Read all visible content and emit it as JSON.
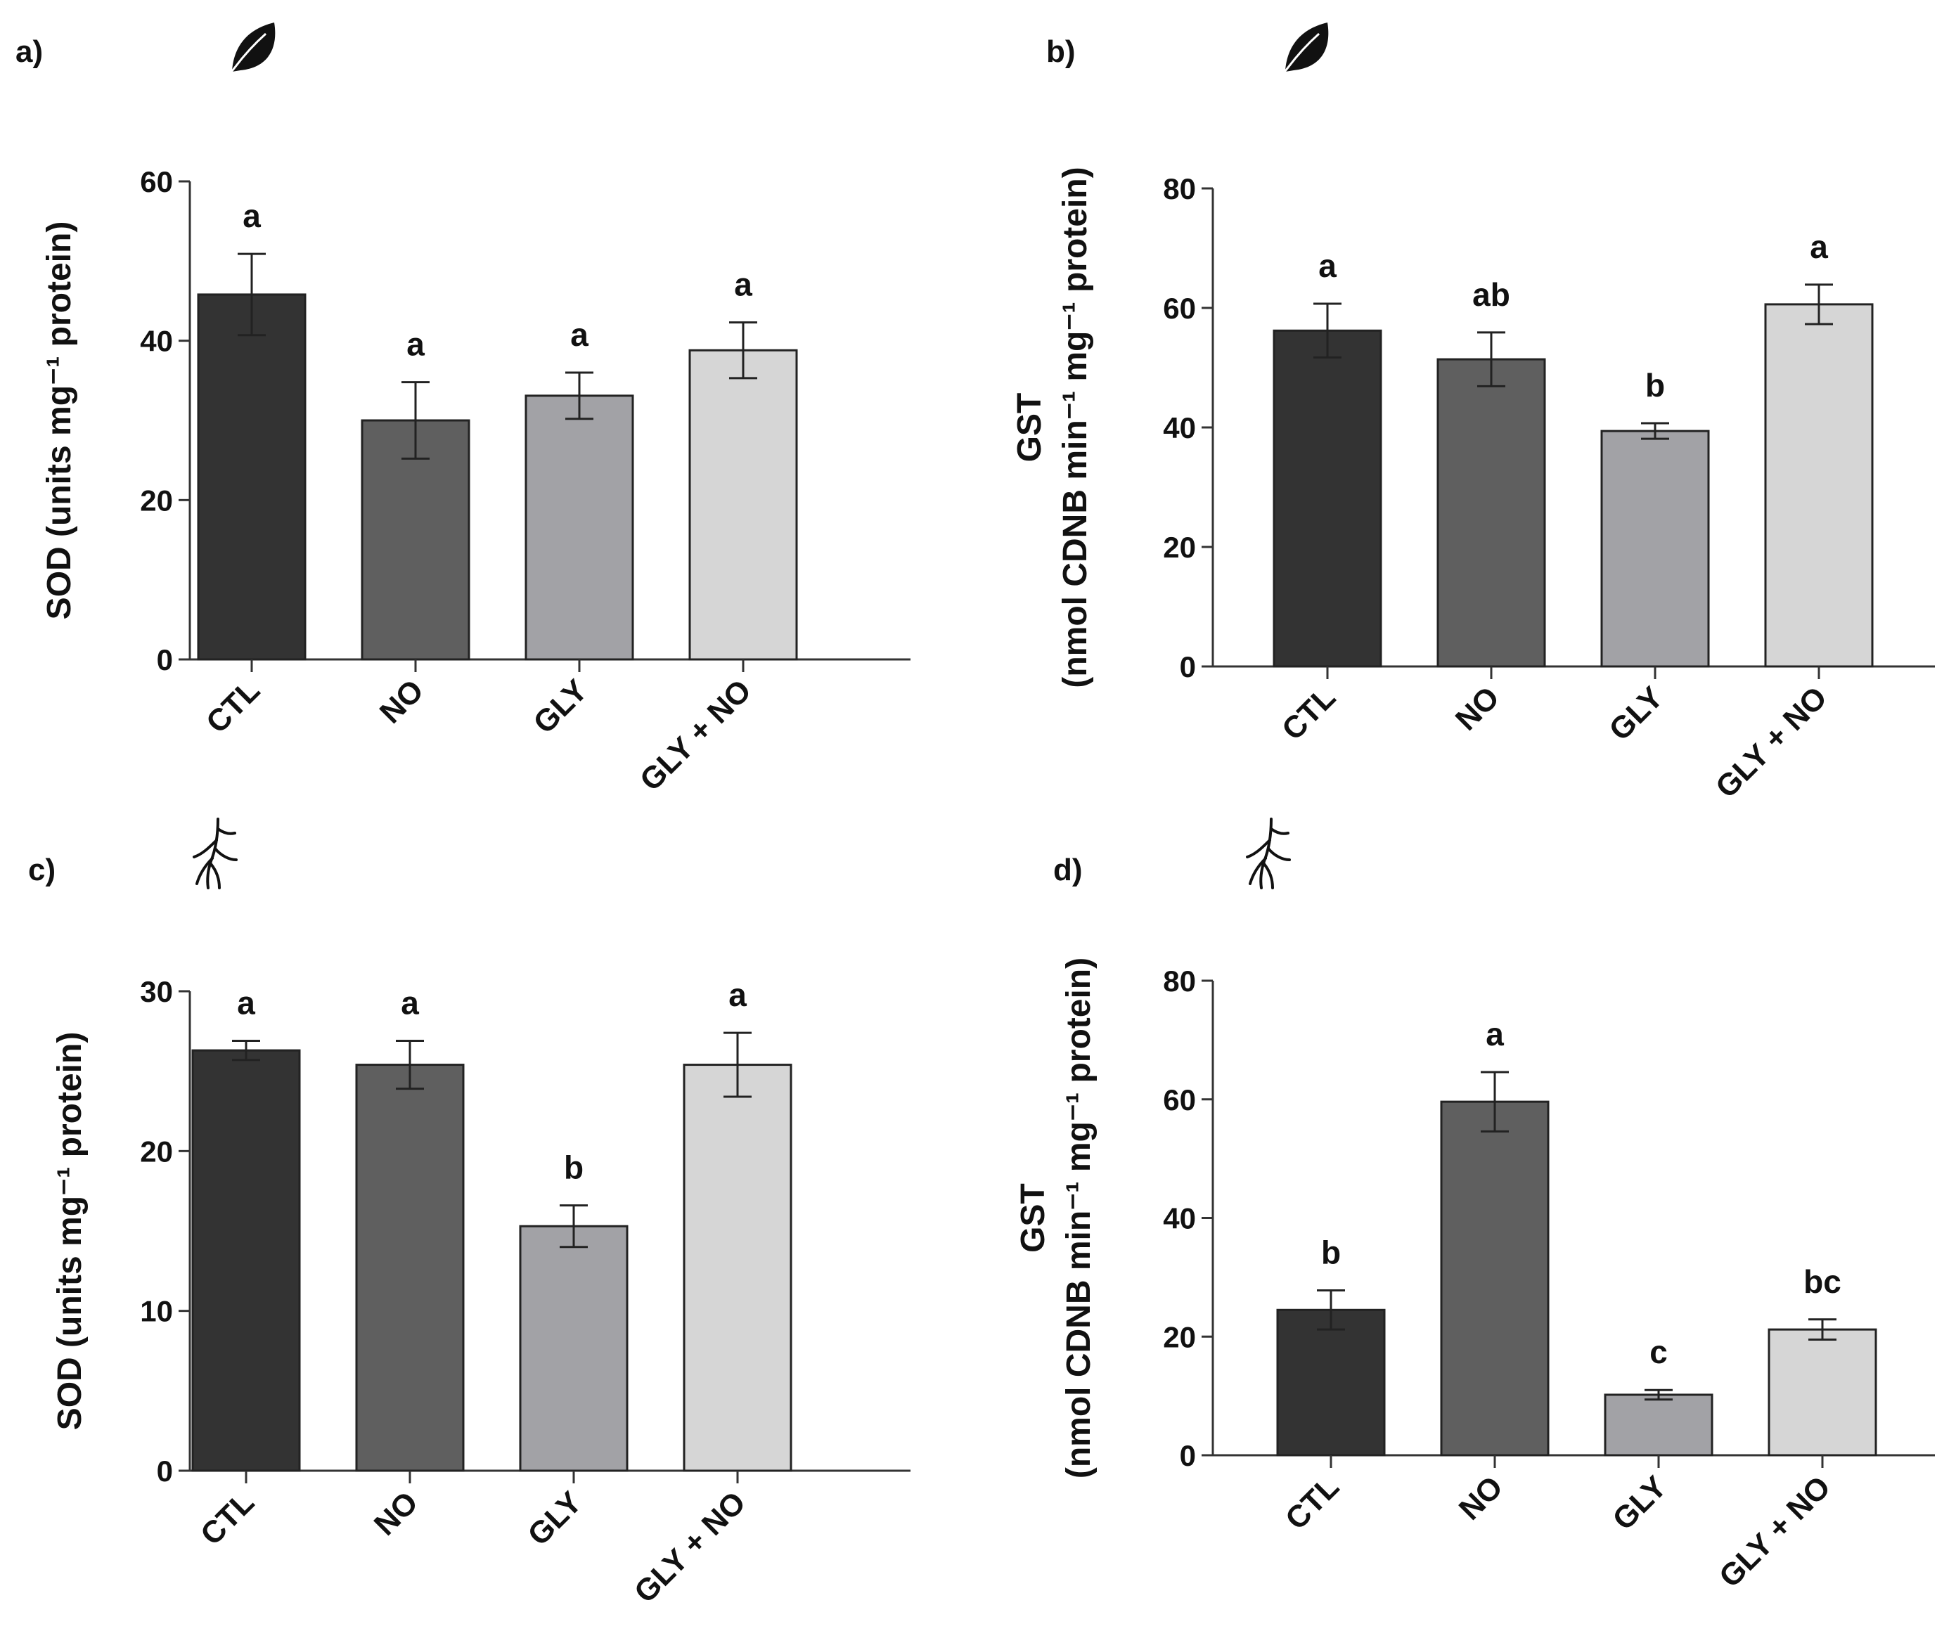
{
  "chart_data": [
    {
      "type": "bar",
      "panel_label": "a)",
      "tissue_icon": "leaf-icon",
      "categories": [
        "CTL",
        "NO",
        "GLY",
        "GLY + NO"
      ],
      "values": [
        45.8,
        30.0,
        33.1,
        38.8
      ],
      "errors": [
        5.1,
        4.8,
        2.9,
        3.5
      ],
      "significance": [
        "a",
        "a",
        "a",
        "a"
      ],
      "ylabel_lines": [
        "SOD (units mg⁻¹ protein)"
      ],
      "ylim": [
        0,
        60
      ],
      "yticks": [
        0,
        20,
        40,
        60
      ],
      "colors": [
        "#333333",
        "#5f5f5f",
        "#a2a2a6",
        "#d6d6d6"
      ]
    },
    {
      "type": "bar",
      "panel_label": "b)",
      "tissue_icon": "leaf-icon",
      "categories": [
        "CTL",
        "NO",
        "GLY",
        "GLY + NO"
      ],
      "values": [
        56.2,
        51.4,
        39.4,
        60.6
      ],
      "errors": [
        4.5,
        4.5,
        1.3,
        3.3
      ],
      "significance": [
        "a",
        "ab",
        "b",
        "a"
      ],
      "ylabel_lines": [
        "GST",
        "(nmol CDNB min⁻¹ mg⁻¹ protein)"
      ],
      "ylim": [
        0,
        80
      ],
      "yticks": [
        0,
        20,
        40,
        60,
        80
      ],
      "colors": [
        "#333333",
        "#5f5f5f",
        "#a2a2a6",
        "#d6d6d6"
      ]
    },
    {
      "type": "bar",
      "panel_label": "c)",
      "tissue_icon": "root-icon",
      "categories": [
        "CTL",
        "NO",
        "GLY",
        "GLY + NO"
      ],
      "values": [
        26.3,
        25.4,
        15.3,
        25.4
      ],
      "errors": [
        0.6,
        1.5,
        1.3,
        2.0
      ],
      "significance": [
        "a",
        "a",
        "b",
        "a"
      ],
      "ylabel_lines": [
        "SOD (units mg⁻¹ protein)"
      ],
      "ylim": [
        0,
        30
      ],
      "yticks": [
        0,
        10,
        20,
        30
      ],
      "colors": [
        "#333333",
        "#5f5f5f",
        "#a2a2a6",
        "#d6d6d6"
      ]
    },
    {
      "type": "bar",
      "panel_label": "d)",
      "tissue_icon": "root-icon",
      "categories": [
        "CTL",
        "NO",
        "GLY",
        "GLY + NO"
      ],
      "values": [
        24.5,
        59.6,
        10.2,
        21.2
      ],
      "errors": [
        3.3,
        5.0,
        0.8,
        1.7
      ],
      "significance": [
        "b",
        "a",
        "c",
        "bc"
      ],
      "ylabel_lines": [
        "GST",
        "(nmol CDNB min⁻¹ mg⁻¹ protein)"
      ],
      "ylim": [
        0,
        80
      ],
      "yticks": [
        0,
        20,
        40,
        60,
        80
      ],
      "colors": [
        "#333333",
        "#5f5f5f",
        "#a2a2a6",
        "#d6d6d6"
      ]
    }
  ]
}
